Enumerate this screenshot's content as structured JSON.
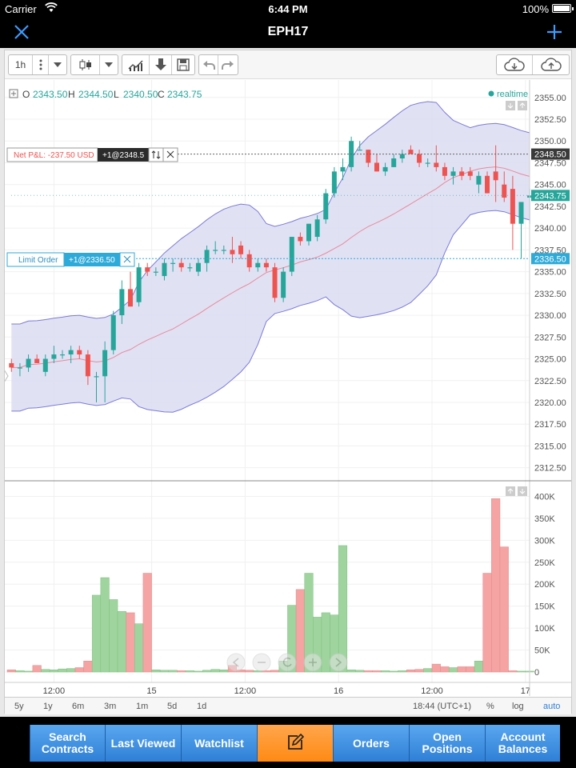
{
  "status_bar": {
    "carrier": "Carrier",
    "time": "6:44 PM",
    "battery": "100%"
  },
  "nav": {
    "title": "EPH17",
    "close_icon": "close-icon",
    "add_icon": "plus-icon"
  },
  "toolbar": {
    "interval": "1h"
  },
  "ohlc": {
    "o_label": "O",
    "o": "2343.50",
    "h_label": "H",
    "h": "2344.50",
    "l_label": "L",
    "l": "2340.50",
    "c_label": "C",
    "c": "2343.75"
  },
  "realtime_label": "realtime",
  "orders": {
    "pnl_label": "Net P&L: -237.50 USD",
    "pnl_position": "+1@2348.5",
    "limit_label": "Limit Order",
    "limit_position": "+1@2336.50"
  },
  "price_tags": {
    "pnl_line": "2348.50",
    "last": "2343.75",
    "limit_line": "2336.50"
  },
  "ranges": [
    "5y",
    "1y",
    "6m",
    "3m",
    "1m",
    "5d",
    "1d"
  ],
  "range_right": {
    "time": "18:44 (UTC+1)",
    "percent": "%",
    "log": "log",
    "auto": "auto"
  },
  "tabs": [
    {
      "label": "Search Contracts"
    },
    {
      "label": "Last Viewed"
    },
    {
      "label": "Watchlist"
    },
    {
      "label": "",
      "icon": "edit-icon"
    },
    {
      "label": "Orders"
    },
    {
      "label": "Open Positions"
    },
    {
      "label": "Account Balances"
    }
  ],
  "colors": {
    "up": "#26a69a",
    "down": "#ef5350",
    "band_fill": "#dcdcf2",
    "band_line": "#7b7bd8",
    "accent": "#2e7fd6"
  },
  "chart_data": {
    "type": "candlestick",
    "price_ylim": [
      2311.0,
      2357.0
    ],
    "price_ticks": [
      "2355.00",
      "2352.50",
      "2350.00",
      "2347.50",
      "2345.00",
      "2342.50",
      "2340.00",
      "2337.50",
      "2335.00",
      "2332.50",
      "2330.00",
      "2327.50",
      "2325.00",
      "2322.50",
      "2320.00",
      "2317.50",
      "2315.00",
      "2312.50"
    ],
    "volume_ylim": [
      0,
      410000
    ],
    "volume_ticks": [
      "400K",
      "350K",
      "300K",
      "250K",
      "200K",
      "150K",
      "100K",
      "50K",
      "0"
    ],
    "x_ticks": [
      "12:00",
      "15",
      "12:00",
      "16",
      "12:00",
      "17"
    ],
    "candles": [
      [
        2324.5,
        2325.0,
        2323.5,
        2324.0
      ],
      [
        2324.0,
        2324.5,
        2323.0,
        2324.0
      ],
      [
        2324.0,
        2325.5,
        2323.5,
        2325.0
      ],
      [
        2325.0,
        2325.5,
        2324.5,
        2324.5
      ],
      [
        2323.5,
        2325.5,
        2323.0,
        2325.0
      ],
      [
        2325.0,
        2326.5,
        2324.5,
        2325.5
      ],
      [
        2325.5,
        2326.0,
        2325.0,
        2325.5
      ],
      [
        2325.5,
        2326.5,
        2324.5,
        2326.0
      ],
      [
        2326.0,
        2326.5,
        2325.0,
        2325.5
      ],
      [
        2325.5,
        2326.0,
        2322.0,
        2323.0
      ],
      [
        2323.0,
        2323.5,
        2320.0,
        2323.0
      ],
      [
        2323.0,
        2327.0,
        2320.0,
        2326.0
      ],
      [
        2326.0,
        2330.5,
        2325.5,
        2330.0
      ],
      [
        2330.0,
        2334.0,
        2329.0,
        2333.0
      ],
      [
        2333.0,
        2335.0,
        2331.0,
        2331.0
      ],
      [
        2331.5,
        2336.0,
        2331.0,
        2335.5
      ],
      [
        2335.5,
        2336.0,
        2334.5,
        2335.0
      ],
      [
        2335.0,
        2335.5,
        2334.5,
        2335.0
      ],
      [
        2334.5,
        2336.5,
        2334.0,
        2336.0
      ],
      [
        2336.0,
        2336.5,
        2335.0,
        2336.0
      ],
      [
        2336.0,
        2336.5,
        2335.0,
        2335.5
      ],
      [
        2335.5,
        2336.0,
        2335.0,
        2335.5
      ],
      [
        2335.0,
        2336.5,
        2334.5,
        2336.0
      ],
      [
        2336.0,
        2338.0,
        2335.0,
        2337.5
      ],
      [
        2337.5,
        2338.5,
        2337.0,
        2337.5
      ],
      [
        2337.5,
        2338.0,
        2337.0,
        2337.5
      ],
      [
        2337.5,
        2339.0,
        2336.0,
        2337.0
      ],
      [
        2338.0,
        2338.5,
        2336.5,
        2337.0
      ],
      [
        2337.0,
        2337.5,
        2335.0,
        2335.5
      ],
      [
        2335.5,
        2336.5,
        2335.0,
        2336.0
      ],
      [
        2336.0,
        2336.5,
        2335.0,
        2335.5
      ],
      [
        2335.5,
        2336.0,
        2331.5,
        2332.0
      ],
      [
        2332.0,
        2335.5,
        2331.5,
        2335.0
      ],
      [
        2335.0,
        2339.0,
        2334.5,
        2339.0
      ],
      [
        2339.0,
        2339.5,
        2338.0,
        2338.5
      ],
      [
        2338.5,
        2340.5,
        2338.0,
        2340.5
      ],
      [
        2339.0,
        2341.5,
        2338.5,
        2341.0
      ],
      [
        2341.0,
        2344.5,
        2340.5,
        2344.0
      ],
      [
        2344.0,
        2347.0,
        2343.5,
        2346.5
      ],
      [
        2346.5,
        2348.0,
        2345.5,
        2347.0
      ],
      [
        2347.0,
        2350.5,
        2346.5,
        2350.0
      ],
      [
        2349.0,
        2350.0,
        2349.0,
        2349.0
      ],
      [
        2349.0,
        2349.0,
        2347.0,
        2347.5
      ],
      [
        2347.5,
        2348.5,
        2346.5,
        2346.5
      ],
      [
        2346.5,
        2347.5,
        2346.0,
        2347.0
      ],
      [
        2347.0,
        2348.5,
        2347.0,
        2348.0
      ],
      [
        2348.0,
        2349.0,
        2347.5,
        2348.5
      ],
      [
        2349.0,
        2349.5,
        2348.5,
        2348.5
      ],
      [
        2348.5,
        2349.0,
        2347.0,
        2347.5
      ],
      [
        2347.5,
        2348.0,
        2347.0,
        2347.5
      ],
      [
        2347.5,
        2349.5,
        2346.5,
        2347.0
      ],
      [
        2347.0,
        2347.5,
        2345.5,
        2346.0
      ],
      [
        2346.0,
        2347.0,
        2345.0,
        2346.5
      ],
      [
        2346.5,
        2347.0,
        2345.5,
        2346.0
      ],
      [
        2346.5,
        2347.0,
        2345.5,
        2346.0
      ],
      [
        2345.0,
        2346.5,
        2344.0,
        2346.0
      ],
      [
        2346.0,
        2346.5,
        2344.0,
        2344.0
      ],
      [
        2346.5,
        2349.5,
        2343.0,
        2345.5
      ],
      [
        2345.0,
        2346.5,
        2343.0,
        2343.5
      ],
      [
        2344.5,
        2346.0,
        2337.5,
        2340.5
      ],
      [
        2340.5,
        2343.0,
        2336.5,
        2343.0
      ],
      [
        2343.5,
        2344.5,
        2340.5,
        2343.75
      ]
    ],
    "volumes": [
      5000,
      3000,
      2000,
      15000,
      6000,
      5000,
      7000,
      8000,
      10000,
      25000,
      175000,
      215000,
      165000,
      138000,
      135000,
      110000,
      225000,
      5000,
      4000,
      4000,
      3000,
      3000,
      2000,
      4000,
      6000,
      5000,
      15000,
      5000,
      4000,
      3000,
      3000,
      4000,
      25000,
      152000,
      188000,
      225000,
      125000,
      135000,
      130000,
      288000,
      5000,
      4000,
      3000,
      3000,
      3000,
      2000,
      3000,
      5000,
      6000,
      8000,
      18000,
      12000,
      10000,
      12000,
      12000,
      25000,
      225000,
      395000,
      285000,
      3000,
      2000,
      2000
    ]
  }
}
